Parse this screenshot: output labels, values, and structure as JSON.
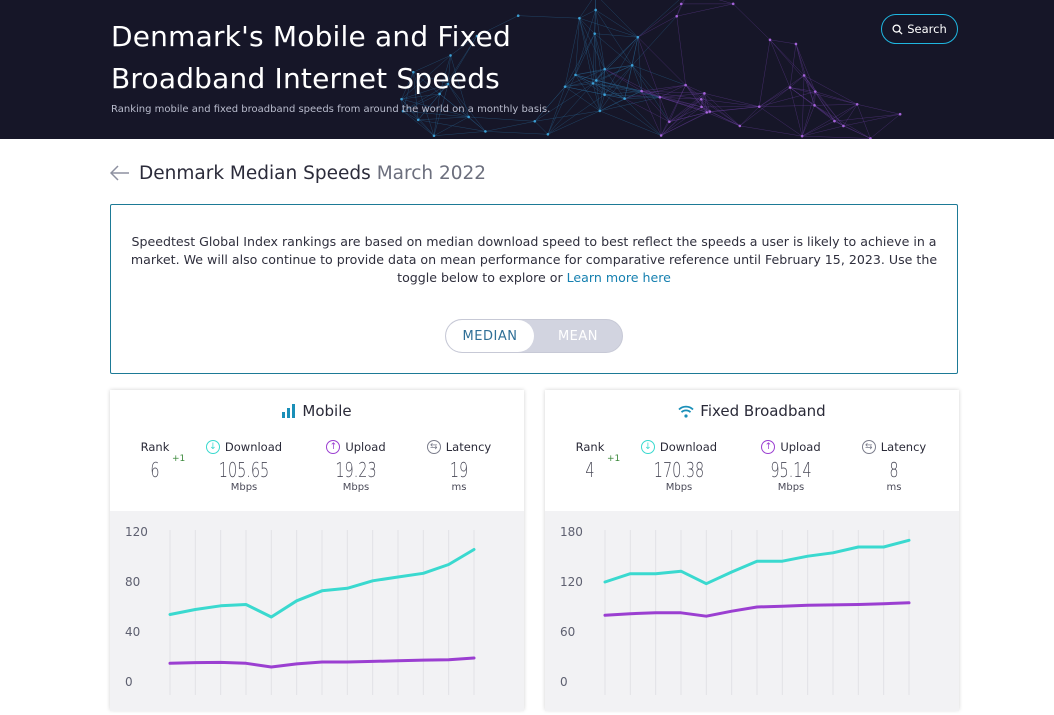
{
  "header": {
    "title": "Denmark's Mobile and Fixed Broadband Internet Speeds",
    "subtitle": "Ranking mobile and fixed broadband speeds from around the world on a monthly basis.",
    "search_label": "Search"
  },
  "page_heading": {
    "country_label": "Denmark Median Speeds",
    "period": "March 2022"
  },
  "notice": {
    "text": "Speedtest Global Index rankings are based on median download speed to best reflect the speeds a user is likely to achieve in a market. We will also continue to provide data on mean performance for comparative reference until February 15, 2023. Use the toggle below to explore or ",
    "link": "Learn more here",
    "toggle": {
      "median": "MEDIAN",
      "mean": "MEAN",
      "selected": "MEDIAN"
    }
  },
  "mobile": {
    "title": "Mobile",
    "rank_label": "Rank",
    "rank": "6",
    "rank_change": "+1",
    "download_label": "Download",
    "download": "105.65",
    "download_unit": "Mbps",
    "upload_label": "Upload",
    "upload": "19.23",
    "upload_unit": "Mbps",
    "latency_label": "Latency",
    "latency": "19",
    "latency_unit": "ms"
  },
  "fixed": {
    "title": "Fixed Broadband",
    "rank_label": "Rank",
    "rank": "4",
    "rank_change": "+1",
    "download_label": "Download",
    "download": "170.38",
    "download_unit": "Mbps",
    "upload_label": "Upload",
    "upload": "95.14",
    "upload_unit": "Mbps",
    "latency_label": "Latency",
    "latency": "8",
    "latency_unit": "ms"
  },
  "colors": {
    "download": "#3ad9cf",
    "upload": "#9b3fd1",
    "latency": "#7b7d8c",
    "mobile_icon": "#1a8fb8",
    "wifi_icon": "#1a8fb8",
    "accent": "#1fb6e0"
  },
  "chart_data": [
    {
      "type": "line",
      "name": "Mobile",
      "x": [
        1,
        2,
        3,
        4,
        5,
        6,
        7,
        8,
        9,
        10,
        11,
        12,
        13
      ],
      "series": [
        {
          "values": [
            54,
            58,
            61,
            62,
            52,
            65,
            73,
            75,
            81,
            84,
            87,
            94,
            106
          ]
        },
        {
          "values": [
            15,
            15.5,
            15.7,
            15,
            12,
            14.5,
            16,
            16,
            16.5,
            17,
            17.5,
            17.8,
            19.2
          ]
        }
      ],
      "yticks": [
        0,
        40,
        80,
        120
      ],
      "ylim": [
        0,
        120
      ]
    },
    {
      "type": "line",
      "name": "Fixed Broadband",
      "x": [
        1,
        2,
        3,
        4,
        5,
        6,
        7,
        8,
        9,
        10,
        11,
        12,
        13
      ],
      "series": [
        {
          "values": [
            120,
            130,
            130,
            133,
            118,
            132,
            145,
            145,
            151,
            155,
            162,
            162,
            170
          ]
        },
        {
          "values": [
            80,
            82,
            83,
            83,
            79,
            85,
            90,
            91,
            92,
            92.5,
            93,
            94,
            95
          ]
        }
      ],
      "yticks": [
        0,
        60,
        120,
        180
      ],
      "ylim": [
        0,
        180
      ]
    }
  ]
}
